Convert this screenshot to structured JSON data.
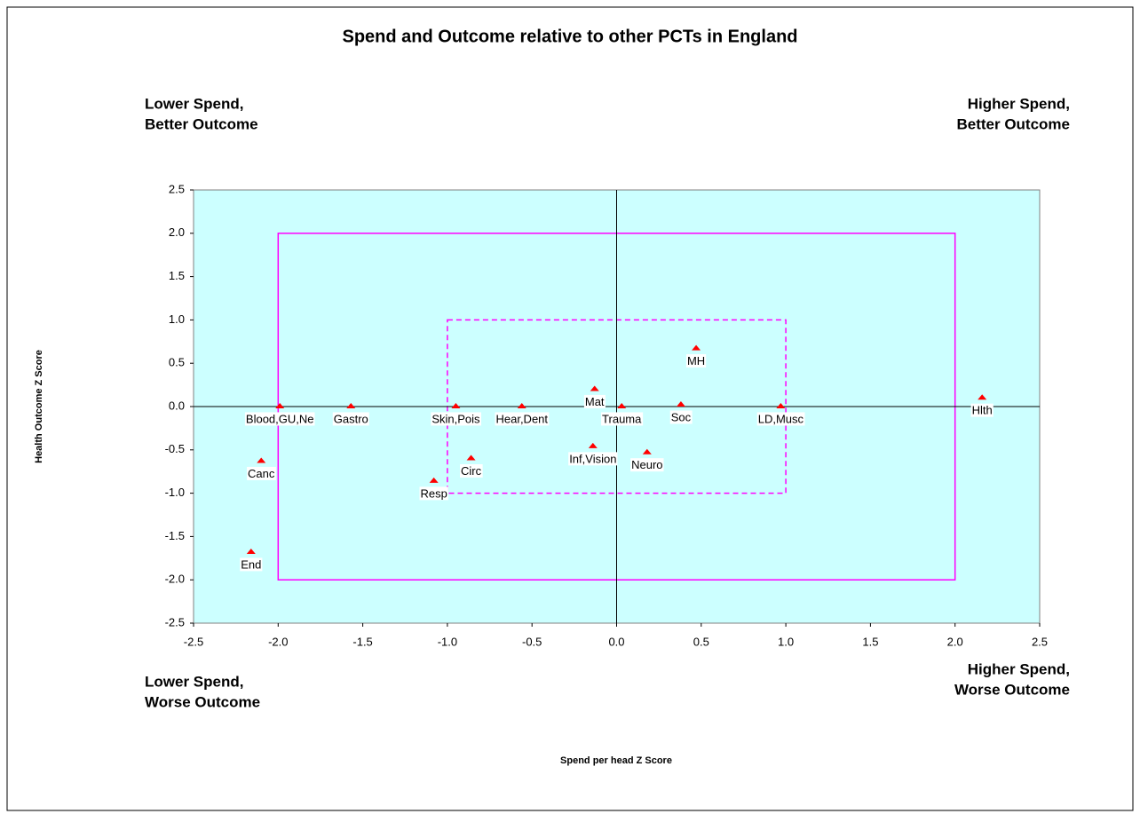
{
  "chart_data": {
    "type": "scatter",
    "title": "Spend and Outcome relative to other PCTs in England",
    "xlabel": "Spend per head Z Score",
    "ylabel": "Health Outcome Z Score",
    "annotations": [
      {
        "lines": [
          "Lower Spend,",
          "Better Outcome"
        ],
        "corner": "upper left"
      },
      {
        "lines": [
          "Higher Spend,",
          "Better Outcome"
        ],
        "corner": "upper right"
      },
      {
        "lines": [
          "Lower Spend,",
          "Worse Outcome"
        ],
        "corner": "lower left"
      },
      {
        "lines": [
          "Higher Spend,",
          "Worse Outcome"
        ],
        "corner": "lower right"
      }
    ],
    "labels": [
      "Blood,GU,Ne",
      "Gastro",
      "Skin,Pois",
      "Hear,Dent",
      "Mat",
      "Trauma",
      "Soc",
      "LD,Musc",
      "Hlth",
      "MH",
      "Inf,Vision",
      "Neuro",
      "Circ",
      "Canc",
      "Resp",
      "End"
    ],
    "x": [
      -1.99,
      -1.57,
      -0.95,
      -0.56,
      -0.13,
      0.03,
      0.38,
      0.97,
      2.16,
      0.47,
      -0.14,
      0.18,
      -0.86,
      -2.1,
      -1.08,
      -2.16
    ],
    "values": [
      0.0,
      0.0,
      0.0,
      0.0,
      0.2,
      0.0,
      0.02,
      0.0,
      0.1,
      0.67,
      -0.46,
      -0.53,
      -0.6,
      -0.63,
      -0.86,
      -1.68
    ],
    "color": "#ff0000",
    "xlim": [
      -2.5,
      2.5
    ],
    "ylim": [
      -2.5,
      2.5
    ],
    "xticks": [
      -2.5,
      {
        "value": -2,
        "label": "-2.0"
      },
      -1.5,
      {
        "value": -1,
        "label": "-1.0"
      },
      -0.5,
      {
        "value": 0,
        "label": "0.0"
      },
      0.5,
      {
        "value": 1,
        "label": "1.0"
      },
      1.5,
      {
        "value": 2,
        "label": "2.0"
      },
      2.5
    ],
    "yticks": [
      -2.5,
      {
        "value": -2,
        "label": "-2.0"
      },
      -1.5,
      {
        "value": -1,
        "label": "-1.0"
      },
      -0.5,
      {
        "value": 0,
        "label": "0.0"
      },
      0.5,
      {
        "value": 1,
        "label": "1.0"
      },
      1.5,
      {
        "value": 2,
        "label": "2.0"
      },
      2.5
    ],
    "plot_background": "#ccffff",
    "boxes": [
      {
        "x": [
          -2,
          2
        ],
        "y": [
          -2,
          2
        ],
        "dashed": false,
        "color": "#ff00ff"
      },
      {
        "x": [
          -1,
          1
        ],
        "y": [
          -1,
          1
        ],
        "dashed": true,
        "color": "#ff00ff"
      }
    ]
  }
}
